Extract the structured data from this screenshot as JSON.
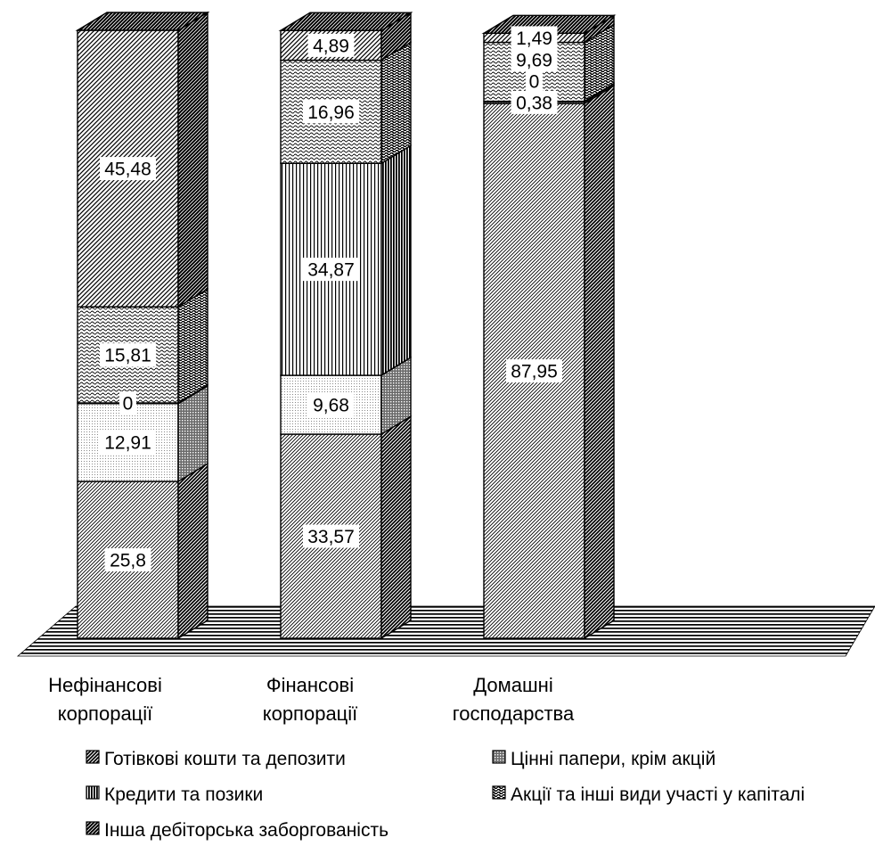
{
  "chart_data": {
    "type": "bar",
    "stacked": true,
    "percent_stacked": true,
    "three_d": true,
    "title": "",
    "xlabel": "",
    "ylabel": "",
    "ylim": [
      0,
      100
    ],
    "grid": false,
    "legend_position": "bottom",
    "categories": [
      [
        "Нефінансові",
        "корпорації"
      ],
      [
        "Фінансові",
        "корпорації"
      ],
      [
        "Домашні",
        "господарства"
      ]
    ],
    "series": [
      {
        "name": "Готівкові кошти та депозити",
        "values": [
          25.8,
          33.57,
          87.95
        ],
        "labels": [
          "25,8",
          "33,57",
          "87,95"
        ],
        "pattern": "dense-diagonal"
      },
      {
        "name": "Цінні папери, крім акцій",
        "values": [
          12.91,
          9.68,
          0.38
        ],
        "labels": [
          "12,91",
          "9,68",
          "0,38"
        ],
        "pattern": "dots"
      },
      {
        "name": "Кредити та позики",
        "values": [
          0,
          34.87,
          0
        ],
        "labels": [
          "0",
          "34,87",
          "0"
        ],
        "pattern": "vertical-lines"
      },
      {
        "name": "Акції та інші види участі у капіталі",
        "values": [
          15.81,
          16.96,
          9.69
        ],
        "labels": [
          "15,81",
          "16,96",
          "9,69"
        ],
        "pattern": "waves"
      },
      {
        "name": "Інша дебіторська заборгованість",
        "values": [
          45.48,
          4.89,
          1.49
        ],
        "labels": [
          "45,48",
          "4,89",
          "1,49"
        ],
        "pattern": "wide-diagonal"
      }
    ]
  }
}
